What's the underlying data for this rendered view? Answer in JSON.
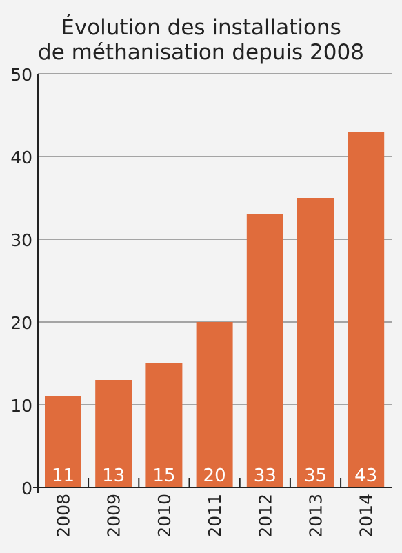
{
  "chart_data": {
    "type": "bar",
    "title": [
      "Évolution des installations",
      "de méthanisation depuis 2008"
    ],
    "categories": [
      "2008",
      "2009",
      "2010",
      "2011",
      "2012",
      "2013",
      "2014"
    ],
    "values": [
      11,
      13,
      15,
      20,
      33,
      35,
      43
    ],
    "data_labels": [
      "11",
      "13",
      "15",
      "20",
      "33",
      "35",
      "43"
    ],
    "ylim": [
      0,
      50
    ],
    "yticks": [
      0,
      10,
      20,
      30,
      40,
      50
    ],
    "ytick_labels": [
      "0",
      "10",
      "20",
      "30",
      "40",
      "50"
    ],
    "grid": true,
    "legend": "none",
    "colors": {
      "bar": "#e06c3c",
      "background": "#f3f3f3",
      "grid": "#555555",
      "axis": "#222222",
      "text": "#222222",
      "label": "#ffffff"
    }
  }
}
